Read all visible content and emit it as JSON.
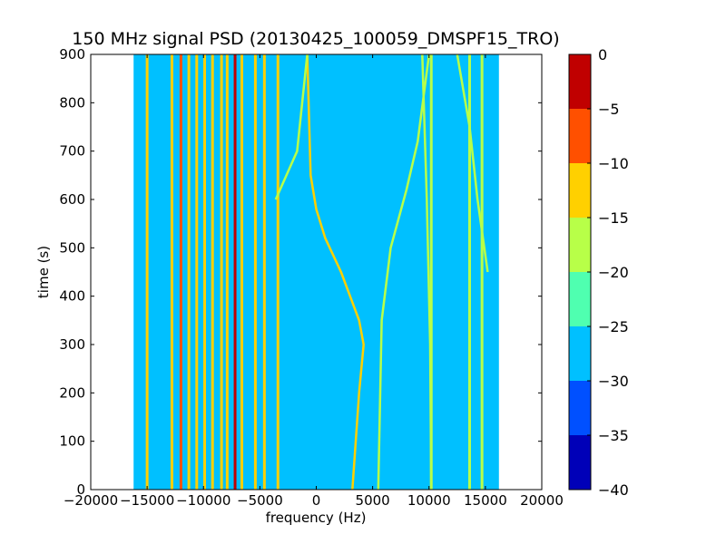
{
  "chart_data": {
    "type": "heatmap",
    "title": "150 MHz signal PSD (20130425_100059_DMSPF15_TRO)",
    "xlabel": "frequency (Hz)",
    "ylabel": "time (s)",
    "xlim": [
      -20000,
      20000
    ],
    "ylim": [
      0,
      900
    ],
    "xticks": [
      -20000,
      -15000,
      -10000,
      -5000,
      0,
      5000,
      10000,
      15000,
      20000
    ],
    "yticks": [
      0,
      100,
      200,
      300,
      400,
      500,
      600,
      700,
      800,
      900
    ],
    "data_extent_hz": [
      -16200,
      16200
    ],
    "colorbar": {
      "levels": [
        -40,
        -35,
        -30,
        -25,
        -20,
        -15,
        -10,
        -5,
        0
      ],
      "tick_labels": [
        "0",
        "-5",
        "-10",
        "-15",
        "-20",
        "-25",
        "-30",
        "-35",
        "-40"
      ],
      "colors": [
        "#0000b8",
        "#0050ff",
        "#00c0ff",
        "#4fffb0",
        "#b8ff48",
        "#ffd000",
        "#ff5000",
        "#c00000"
      ]
    },
    "background_level_color": "#00c0ff",
    "grid": false,
    "constant_tones": [
      {
        "freq_hz": -7200,
        "level_db": -2
      },
      {
        "freq_hz": -15000,
        "level_db": -12
      },
      {
        "freq_hz": -12800,
        "level_db": -12
      },
      {
        "freq_hz": -12000,
        "level_db": -10
      },
      {
        "freq_hz": -11300,
        "level_db": -12
      },
      {
        "freq_hz": -10600,
        "level_db": -12
      },
      {
        "freq_hz": -9900,
        "level_db": -12
      },
      {
        "freq_hz": -9200,
        "level_db": -12
      },
      {
        "freq_hz": -8400,
        "level_db": -12
      },
      {
        "freq_hz": -7900,
        "level_db": -12
      },
      {
        "freq_hz": -6600,
        "level_db": -12
      },
      {
        "freq_hz": -5400,
        "level_db": -15
      },
      {
        "freq_hz": -4600,
        "level_db": -15
      },
      {
        "freq_hz": -3400,
        "level_db": -15
      },
      {
        "freq_hz": 10200,
        "level_db": -18
      },
      {
        "freq_hz": 13600,
        "level_db": -18
      },
      {
        "freq_hz": 14700,
        "level_db": -18
      }
    ],
    "doppler_traces": [
      {
        "level_db": -15,
        "points": [
          [
            3200,
            0
          ],
          [
            3800,
            200
          ],
          [
            4200,
            300
          ],
          [
            3800,
            350
          ],
          [
            3000,
            400
          ],
          [
            2200,
            450
          ],
          [
            800,
            520
          ],
          [
            0,
            580
          ],
          [
            -500,
            650
          ],
          [
            -800,
            900
          ]
        ]
      },
      {
        "level_db": -20,
        "points": [
          [
            5500,
            0
          ],
          [
            5800,
            350
          ],
          [
            6600,
            500
          ],
          [
            8000,
            620
          ],
          [
            9000,
            720
          ],
          [
            10000,
            900
          ]
        ]
      },
      {
        "level_db": -20,
        "points": [
          [
            -800,
            900
          ],
          [
            -1700,
            700
          ],
          [
            -3600,
            600
          ]
        ]
      },
      {
        "level_db": -20,
        "points": [
          [
            12500,
            900
          ],
          [
            13600,
            750
          ],
          [
            14300,
            600
          ],
          [
            15200,
            450
          ]
        ]
      },
      {
        "level_db": -20,
        "points": [
          [
            9400,
            900
          ],
          [
            9800,
            600
          ],
          [
            10100,
            300
          ],
          [
            10200,
            0
          ]
        ]
      }
    ]
  }
}
